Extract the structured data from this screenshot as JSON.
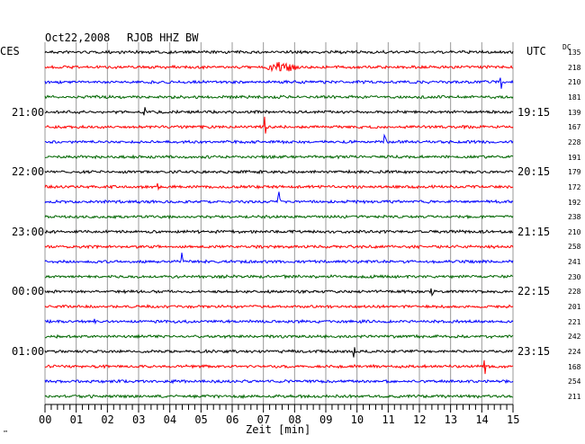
{
  "header": {
    "date": "Oct22,2008",
    "station": "RJOB HHZ BW",
    "left_zone": "CES",
    "right_zone": "UTC",
    "dc_label": "DC"
  },
  "chart_data": {
    "type": "line",
    "xlabel": "Zeit [min]",
    "xlim": [
      0,
      15
    ],
    "x_ticks": [
      "00",
      "01",
      "02",
      "03",
      "04",
      "05",
      "06",
      "07",
      "08",
      "09",
      "10",
      "11",
      "12",
      "13",
      "14",
      "15"
    ],
    "left_time_labels": [
      {
        "row": 4,
        "text": "21:00"
      },
      {
        "row": 8,
        "text": "22:00"
      },
      {
        "row": 12,
        "text": "23:00"
      },
      {
        "row": 16,
        "text": "00:00"
      },
      {
        "row": 20,
        "text": "01:00"
      }
    ],
    "right_time_labels": [
      {
        "row": 4,
        "text": "19:15"
      },
      {
        "row": 8,
        "text": "20:15"
      },
      {
        "row": 12,
        "text": "21:15"
      },
      {
        "row": 16,
        "text": "22:15"
      },
      {
        "row": 20,
        "text": "23:15"
      }
    ],
    "dc_values": [
      "135",
      "218",
      "210",
      "181",
      "139",
      "167",
      "228",
      "191",
      "179",
      "172",
      "192",
      "238",
      "210",
      "258",
      "241",
      "230",
      "228",
      "201",
      "221",
      "242",
      "224",
      "168",
      "254",
      "211"
    ],
    "trace_colors": [
      "#000000",
      "#ff0000",
      "#0000ff",
      "#006600"
    ],
    "events": [
      {
        "row": 1,
        "minute": 7.6,
        "amplitude": 6,
        "width": 1.3
      },
      {
        "row": 2,
        "minute": 14.6,
        "amplitude": 12,
        "width": 0.05
      },
      {
        "row": 4,
        "minute": 3.2,
        "amplitude": 5,
        "width": 0.05
      },
      {
        "row": 5,
        "minute": 7.05,
        "amplitude": 16,
        "width": 0.08
      },
      {
        "row": 6,
        "minute": 10.9,
        "amplitude": 18,
        "width": 0.08
      },
      {
        "row": 9,
        "minute": 3.6,
        "amplitude": 9,
        "width": 0.06
      },
      {
        "row": 10,
        "minute": 7.5,
        "amplitude": 11,
        "width": 0.06
      },
      {
        "row": 14,
        "minute": 4.4,
        "amplitude": 12,
        "width": 0.06
      },
      {
        "row": 16,
        "minute": 12.4,
        "amplitude": 9,
        "width": 0.06
      },
      {
        "row": 18,
        "minute": 1.6,
        "amplitude": 12,
        "width": 0.06
      },
      {
        "row": 20,
        "minute": 9.9,
        "amplitude": 7,
        "width": 0.06
      },
      {
        "row": 21,
        "minute": 14.1,
        "amplitude": 13,
        "width": 0.06
      }
    ],
    "footnote": "™"
  }
}
